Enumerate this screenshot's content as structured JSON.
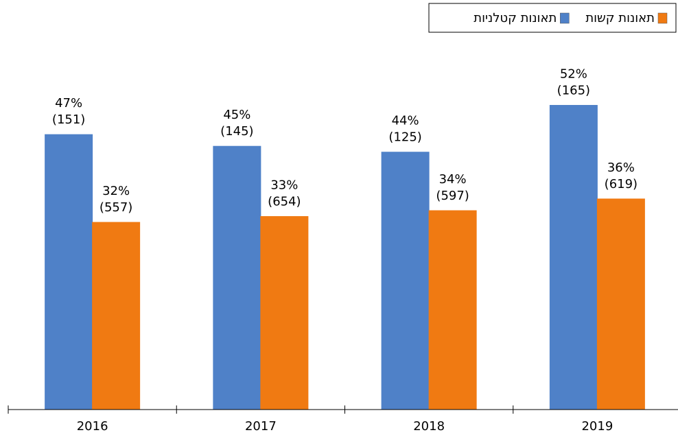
{
  "chart_data": {
    "type": "bar",
    "categories": [
      "2016",
      "2017",
      "2018",
      "2019"
    ],
    "series": [
      {
        "name": "תאונות קטלניות",
        "color": "#4f81c8",
        "values": [
          47,
          45,
          44,
          52
        ],
        "value_labels": [
          [
            "47%",
            "(151)"
          ],
          [
            "45%",
            "(145)"
          ],
          [
            "44%",
            "(125)"
          ],
          [
            "52%",
            "(165)"
          ]
        ]
      },
      {
        "name": "תאונות קשות",
        "color": "#f07a12",
        "values": [
          32,
          33,
          34,
          36
        ],
        "value_labels": [
          [
            "32%",
            "(557)"
          ],
          [
            "33%",
            "(654)"
          ],
          [
            "34%",
            "(597)"
          ],
          [
            "36%",
            "(619)"
          ]
        ]
      }
    ],
    "ylim": [
      0,
      70
    ],
    "grid": false,
    "legend": "top-right"
  }
}
